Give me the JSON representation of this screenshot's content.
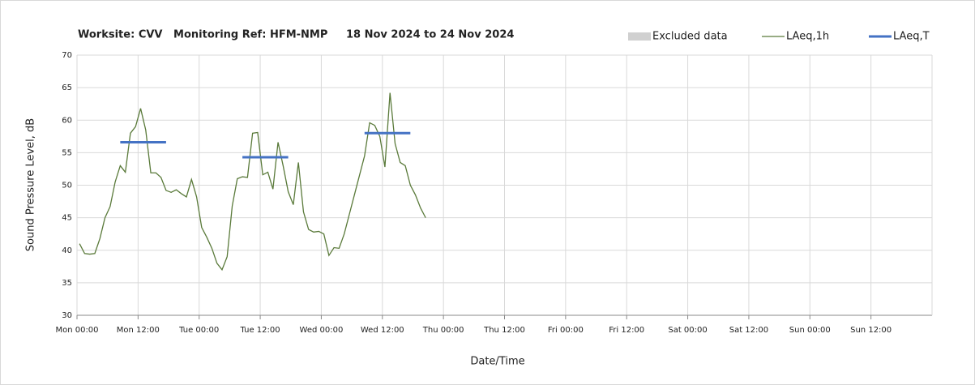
{
  "chart_data": {
    "type": "line",
    "title": "Worksite: CVV   Monitoring Ref: HFM-NMP     18 Nov 2024 to 24 Nov 2024",
    "y_label": "Sound Pressure Level, dB",
    "x_label": "Date/Time",
    "xlim": [
      0,
      168
    ],
    "xticks": [
      {
        "value": 0,
        "label": "Mon 00:00"
      },
      {
        "value": 12,
        "label": "Mon 12:00"
      },
      {
        "value": 24,
        "label": "Tue 00:00"
      },
      {
        "value": 36,
        "label": "Tue 12:00"
      },
      {
        "value": 48,
        "label": "Wed 00:00"
      },
      {
        "value": 60,
        "label": "Wed 12:00"
      },
      {
        "value": 72,
        "label": "Thu 00:00"
      },
      {
        "value": 84,
        "label": "Thu 12:00"
      },
      {
        "value": 96,
        "label": "Fri 00:00"
      },
      {
        "value": 108,
        "label": "Fri 12:00"
      },
      {
        "value": 120,
        "label": "Sat 00:00"
      },
      {
        "value": 132,
        "label": "Sat 12:00"
      },
      {
        "value": 144,
        "label": "Sun 00:00"
      },
      {
        "value": 156,
        "label": "Sun 12:00"
      }
    ],
    "ylim": [
      30,
      70
    ],
    "yticks": [
      30,
      35,
      40,
      45,
      50,
      55,
      60,
      65,
      70
    ],
    "grid": true,
    "legend": "top-right",
    "series": [
      {
        "name": "Excluded data",
        "type": "area",
        "color": "#d0d0d0",
        "x": [],
        "values": []
      },
      {
        "name": "LAeq,1h",
        "type": "line",
        "color": "#5a7a3a",
        "x": [
          0.5,
          1.5,
          2.5,
          3.5,
          4.5,
          5.5,
          6.5,
          7.5,
          8.5,
          9.5,
          10.5,
          11.5,
          12.5,
          13.5,
          14.5,
          15.5,
          16.5,
          17.5,
          18.5,
          19.5,
          20.5,
          21.5,
          22.5,
          23.5,
          24.5,
          25.5,
          26.5,
          27.5,
          28.5,
          29.5,
          30.5,
          31.5,
          32.5,
          33.5,
          34.5,
          35.5,
          36.5,
          37.5,
          38.5,
          39.5,
          40.5,
          41.5,
          42.5,
          43.5,
          44.5,
          45.5,
          46.5,
          47.5,
          48.5,
          49.5,
          50.5,
          51.5,
          52.5,
          53.5,
          54.5,
          55.5,
          56.5,
          57.5,
          58.5,
          59.5,
          60.5,
          61.5,
          62.5,
          63.5,
          64.5,
          65.5,
          66.5,
          67.5,
          68.5
        ],
        "values": [
          41,
          39.5,
          39.4,
          39.5,
          41.8,
          45,
          46.7,
          50.5,
          53,
          52,
          58,
          59,
          61.8,
          58.5,
          51.9,
          51.9,
          51.2,
          49.2,
          48.9,
          49.3,
          48.7,
          48.2,
          50.9,
          48.2,
          43.5,
          42,
          40.3,
          38,
          37,
          39,
          46.8,
          51,
          51.3,
          51.2,
          58,
          58.1,
          51.6,
          52,
          49.4,
          56.6,
          53,
          49,
          47,
          53.5,
          45.9,
          43.2,
          42.8,
          42.9,
          42.5,
          39.2,
          40.4,
          40.3,
          42.5,
          45.5,
          48.5,
          51.5,
          54.5,
          59.6,
          59.2,
          57.5,
          52.8,
          64.2,
          56.4,
          53.5,
          53,
          50,
          48.5,
          46.5,
          45
        ]
      },
      {
        "name": "LAeq,T",
        "type": "segment",
        "color": "#4472c4",
        "x_start": [
          8.5,
          32.5,
          56.5
        ],
        "x_end": [
          17.5,
          41.5,
          65.5
        ],
        "values": [
          56.6,
          54.3,
          58
        ]
      }
    ]
  }
}
